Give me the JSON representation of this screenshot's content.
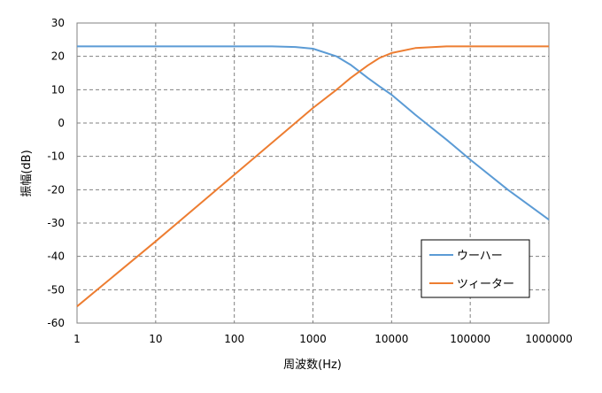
{
  "chart_data": {
    "type": "line",
    "xscale": "log",
    "xlim": [
      1,
      1000000
    ],
    "ylim": [
      -60,
      30
    ],
    "x_ticks": [
      1,
      10,
      100,
      1000,
      10000,
      100000,
      1000000
    ],
    "x_tick_labels": [
      "1",
      "10",
      "100",
      "1000",
      "10000",
      "100000",
      "1000000"
    ],
    "y_ticks": [
      30,
      20,
      10,
      0,
      -10,
      -20,
      -30,
      -40,
      -50,
      -60
    ],
    "y_tick_labels": [
      "30",
      "20",
      "10",
      "0",
      "-10",
      "-20",
      "-30",
      "-40",
      "-50",
      "-60"
    ],
    "xlabel": "周波数(Hz)",
    "ylabel": "振幅(dB)",
    "grid": true,
    "legend_position": "bottom-right",
    "series": [
      {
        "name": "ウーハー",
        "color": "#5B9BD5",
        "x": [
          1,
          10,
          100,
          300,
          600,
          1000,
          2000,
          3000,
          5000,
          7000,
          10000,
          20000,
          50000,
          100000,
          300000,
          1000000
        ],
        "y": [
          23,
          23,
          23,
          23,
          22.8,
          22.3,
          20,
          17.5,
          13.5,
          11,
          8.5,
          2.5,
          -5,
          -11,
          -20,
          -29
        ]
      },
      {
        "name": "ツィーター",
        "color": "#ED7D31",
        "x": [
          1,
          10,
          100,
          1000,
          2000,
          3000,
          5000,
          7000,
          10000,
          20000,
          50000,
          100000,
          1000000
        ],
        "y": [
          -55,
          -35.5,
          -15.5,
          4.5,
          10,
          13.5,
          17.3,
          19.5,
          21,
          22.5,
          23,
          23,
          23
        ]
      }
    ]
  }
}
